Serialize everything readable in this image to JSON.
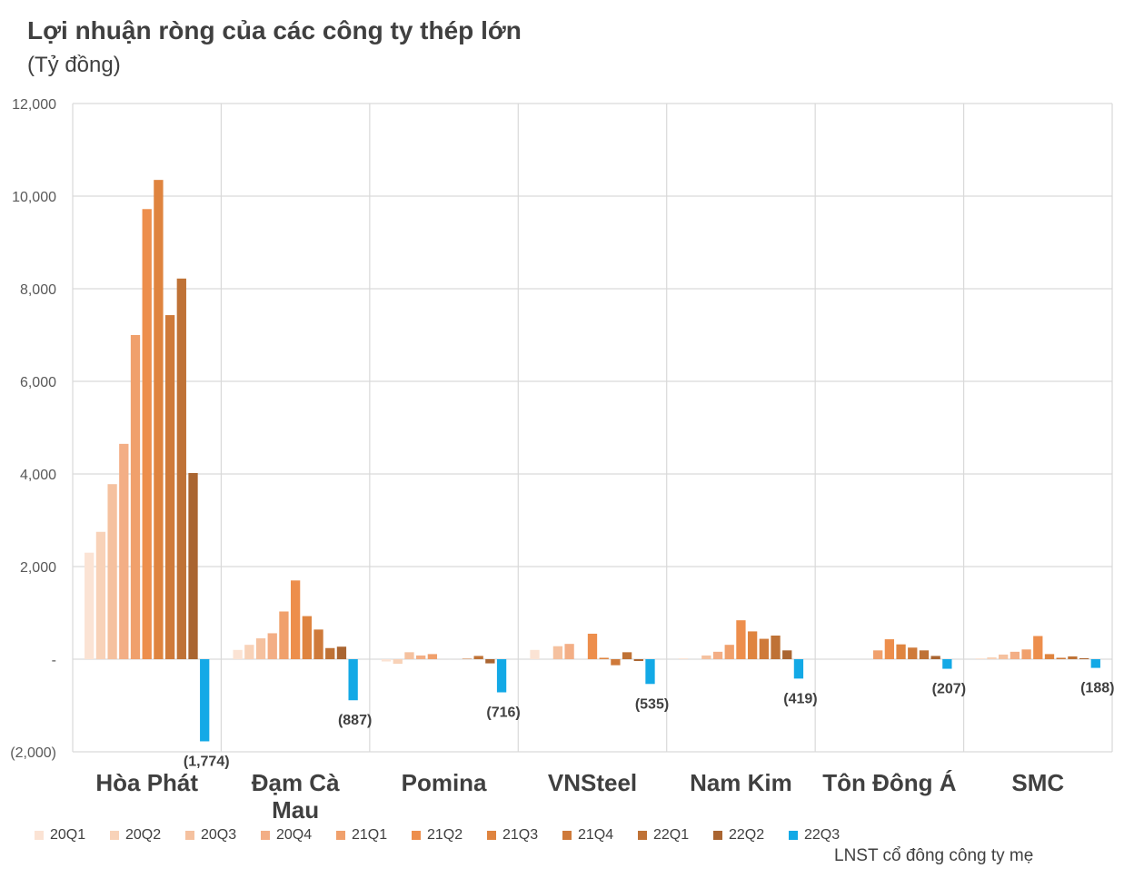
{
  "title": "Lợi nhuận ròng của các công ty thép lớn",
  "unit": "(Tỷ đồng)",
  "footnote": "LNST cổ đông công ty mẹ",
  "series_colors": [
    "#fbe3d4",
    "#f8d2b8",
    "#f5c19f",
    "#f3ae85",
    "#f0a06c",
    "#ed8e4c",
    "#df843f",
    "#cf7a3a",
    "#bf7236",
    "#aa6531",
    "#13a9e6"
  ],
  "chart_data": {
    "type": "bar",
    "categories": [
      "Hòa Phát",
      "Đạm Cà Mau",
      "Pomina",
      "VNSteel",
      "Nam Kim",
      "Tôn Đông Á",
      "SMC"
    ],
    "ylim": [
      -2000,
      12000
    ],
    "yticks": [
      -2000,
      0,
      2000,
      4000,
      6000,
      8000,
      10000,
      12000
    ],
    "ytick_labels": [
      "(2,000)",
      "-",
      "2,000",
      "4,000",
      "6,000",
      "8,000",
      "10,000",
      "12,000"
    ],
    "grid": true,
    "legend_position": "bottom",
    "series": [
      {
        "name": "20Q1",
        "values": [
          2300,
          200,
          -50,
          200,
          20,
          0,
          20
        ]
      },
      {
        "name": "20Q2",
        "values": [
          2750,
          310,
          -100,
          0,
          0,
          0,
          40
        ]
      },
      {
        "name": "20Q3",
        "values": [
          3780,
          450,
          150,
          280,
          80,
          0,
          100
        ]
      },
      {
        "name": "20Q4",
        "values": [
          4650,
          560,
          80,
          330,
          160,
          0,
          160
        ]
      },
      {
        "name": "21Q1",
        "values": [
          7000,
          1030,
          110,
          0,
          310,
          190,
          210
        ]
      },
      {
        "name": "21Q2",
        "values": [
          9720,
          1700,
          0,
          550,
          840,
          430,
          500
        ]
      },
      {
        "name": "21Q3",
        "values": [
          10350,
          930,
          0,
          30,
          600,
          320,
          110
        ]
      },
      {
        "name": "21Q4",
        "values": [
          7430,
          640,
          10,
          -130,
          440,
          250,
          30
        ]
      },
      {
        "name": "22Q1",
        "values": [
          8220,
          240,
          70,
          150,
          510,
          190,
          60
        ]
      },
      {
        "name": "22Q2",
        "values": [
          4020,
          270,
          -90,
          -40,
          190,
          70,
          20
        ]
      },
      {
        "name": "22Q3",
        "values": [
          -1774,
          -887,
          -716,
          -535,
          -419,
          -207,
          -188
        ]
      }
    ],
    "data_labels": [
      "(1,774)",
      "(887)",
      "(716)",
      "(535)",
      "(419)",
      "(207)",
      "(188)"
    ]
  }
}
